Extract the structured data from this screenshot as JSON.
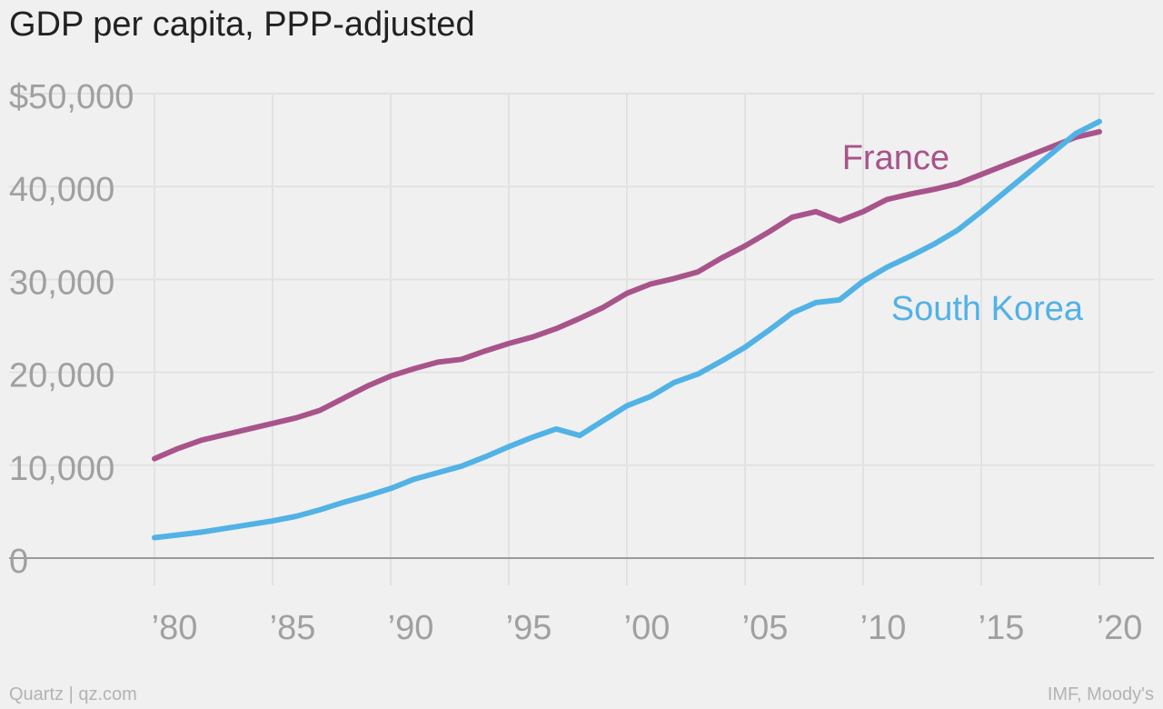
{
  "chart_data": {
    "type": "line",
    "title": "GDP per capita, PPP-adjusted",
    "xlabel": "",
    "ylabel": "",
    "xlim": [
      1980,
      2020
    ],
    "ylim": [
      0,
      50000
    ],
    "x_ticks": [
      1980,
      1985,
      1990,
      1995,
      2000,
      2005,
      2010,
      2015,
      2020
    ],
    "x_tick_labels": [
      "’80",
      "’85",
      "’90",
      "’95",
      "’00",
      "’05",
      "’10",
      "’15",
      "’20"
    ],
    "y_ticks": [
      0,
      10000,
      20000,
      30000,
      40000,
      50000
    ],
    "y_tick_labels": [
      "0",
      "10,000",
      "20,000",
      "30,000",
      "40,000",
      "$50,000"
    ],
    "grid": true,
    "x": [
      1980,
      1981,
      1982,
      1983,
      1984,
      1985,
      1986,
      1987,
      1988,
      1989,
      1990,
      1991,
      1992,
      1993,
      1994,
      1995,
      1996,
      1997,
      1998,
      1999,
      2000,
      2001,
      2002,
      2003,
      2004,
      2005,
      2006,
      2007,
      2008,
      2009,
      2010,
      2011,
      2012,
      2013,
      2014,
      2015,
      2016,
      2017,
      2018,
      2019,
      2020
    ],
    "series": [
      {
        "name": "France",
        "color": "#a8548a",
        "values": [
          10700,
          11800,
          12700,
          13300,
          13900,
          14500,
          15100,
          15900,
          17200,
          18500,
          19600,
          20400,
          21100,
          21400,
          22300,
          23100,
          23800,
          24700,
          25800,
          27000,
          28500,
          29500,
          30100,
          30800,
          32300,
          33600,
          35100,
          36700,
          37300,
          36300,
          37300,
          38600,
          39200,
          39700,
          40300,
          41300,
          42300,
          43300,
          44300,
          45300,
          45900
        ]
      },
      {
        "name": "South Korea",
        "color": "#51b2e5",
        "values": [
          2200,
          2500,
          2800,
          3200,
          3600,
          4000,
          4500,
          5200,
          6000,
          6700,
          7500,
          8500,
          9200,
          9900,
          10900,
          12000,
          13000,
          13900,
          13200,
          14800,
          16400,
          17400,
          18900,
          19800,
          21200,
          22700,
          24500,
          26400,
          27500,
          27800,
          29800,
          31300,
          32500,
          33800,
          35300,
          37300,
          39400,
          41500,
          43600,
          45700,
          47000
        ]
      }
    ],
    "annotations": [
      "France",
      "South Korea"
    ]
  },
  "footer": {
    "source_left": "Quartz | qz.com",
    "source_right": "IMF, Moody's"
  },
  "colors": {
    "background": "#f0f0f0",
    "gridline": "#e2e2e2",
    "baseline": "#9a9a9a",
    "tick_text": "#a0a0a0",
    "title_text": "#222222"
  }
}
